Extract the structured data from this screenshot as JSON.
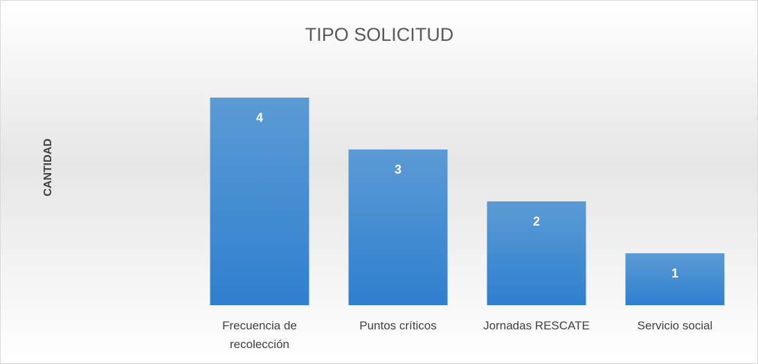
{
  "chart_data": {
    "type": "bar",
    "title": "TIPO SOLICITUD",
    "y_label": "CANTIDAD",
    "categories": [
      "Frecuencia de recolección",
      "Puntos críticos",
      "Jornadas RESCATE",
      "Servicio social"
    ],
    "values": [
      4,
      3,
      2,
      1
    ],
    "color": "#5b9bd5"
  }
}
